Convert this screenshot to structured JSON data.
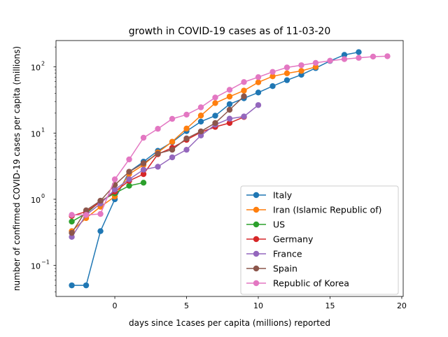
{
  "chart_data": {
    "type": "line",
    "title": "growth in COVID-19 cases as of 11-03-20",
    "xlabel": "days since 1cases per capita (millions) reported",
    "ylabel": "number of confirmed COVID-19 cases per capita (millions)",
    "xlim": [
      -4.1,
      20.1
    ],
    "ylim": [
      0.034,
      250
    ],
    "yscale": "log",
    "xticks": [
      0,
      5,
      10,
      15,
      20
    ],
    "xtick_labels": [
      "0",
      "5",
      "10",
      "15",
      "20"
    ],
    "yticks": [
      0.1,
      1,
      10,
      100
    ],
    "ytick_labels": [
      "10",
      "10",
      "10",
      "10"
    ],
    "ytick_exponents": [
      "−1",
      "0",
      "1",
      "2"
    ],
    "legend_position": "lower-right",
    "series": [
      {
        "name": "Italy",
        "color": "#1f77b4",
        "x": [
          -3,
          -2,
          -1,
          0,
          1,
          2,
          3,
          4,
          5,
          6,
          7,
          8,
          9,
          10,
          11,
          12,
          13,
          14,
          15,
          16,
          17
        ],
        "y": [
          0.05,
          0.05,
          0.33,
          1.0,
          2.6,
          3.7,
          5.4,
          7.3,
          10.7,
          14.9,
          18.3,
          27.4,
          33.6,
          41.0,
          51.2,
          63.0,
          76.0,
          96.0,
          123.0,
          152.0,
          167.0
        ]
      },
      {
        "name": "Iran (Islamic Republic of)",
        "color": "#ff7f0e",
        "x": [
          -3,
          -2,
          -1,
          0,
          1,
          2,
          3,
          4,
          5,
          6,
          7,
          8,
          9,
          10,
          11,
          12,
          13,
          14
        ],
        "y": [
          0.33,
          0.52,
          0.77,
          1.1,
          2.4,
          3.3,
          5.1,
          7.4,
          11.7,
          18.4,
          28.4,
          35.6,
          43.8,
          58.5,
          72.0,
          80.0,
          87.0,
          100.0
        ]
      },
      {
        "name": "US",
        "color": "#2ca02c",
        "x": [
          -3,
          -2,
          -1,
          0,
          1,
          2
        ],
        "y": [
          0.46,
          0.61,
          0.94,
          1.23,
          1.6,
          1.78
        ]
      },
      {
        "name": "Germany",
        "color": "#d62728",
        "x": [
          -3,
          -2,
          -1,
          0,
          1,
          2,
          3,
          4,
          5,
          6,
          7,
          8,
          9
        ],
        "y": [
          0.56,
          0.65,
          0.91,
          1.3,
          1.9,
          2.4,
          4.8,
          6.0,
          7.9,
          10.3,
          12.4,
          14.2,
          17.5
        ]
      },
      {
        "name": "France",
        "color": "#9467bd",
        "x": [
          -3,
          -2,
          -1,
          0,
          1,
          2,
          3,
          4,
          5,
          6,
          7,
          8,
          9,
          10
        ],
        "y": [
          0.27,
          0.58,
          0.86,
          1.4,
          2.0,
          2.8,
          3.1,
          4.3,
          5.6,
          9.2,
          13.4,
          16.5,
          17.8,
          26.5
        ]
      },
      {
        "name": "Spain",
        "color": "#8c564b",
        "x": [
          -3,
          -2,
          -1,
          0,
          1,
          2,
          3,
          4,
          5,
          6,
          7,
          8,
          9
        ],
        "y": [
          0.31,
          0.68,
          0.95,
          1.65,
          2.6,
          3.5,
          4.9,
          5.6,
          8.3,
          10.6,
          14.2,
          22.5,
          36.0
        ]
      },
      {
        "name": "Republic of Korea",
        "color": "#e377c2",
        "x": [
          -3,
          -2,
          -1,
          0,
          1,
          2,
          3,
          4,
          5,
          6,
          7,
          8,
          9,
          10,
          11,
          12,
          13,
          14,
          15,
          16,
          17,
          18,
          19
        ],
        "y": [
          0.58,
          0.58,
          0.6,
          2.0,
          4.0,
          8.5,
          11.6,
          16.4,
          19.0,
          24.5,
          34.5,
          45.0,
          59.0,
          70.0,
          84.0,
          98.0,
          106.0,
          115.0,
          124.0,
          131.0,
          137.0,
          143.0,
          145.0
        ]
      }
    ]
  }
}
